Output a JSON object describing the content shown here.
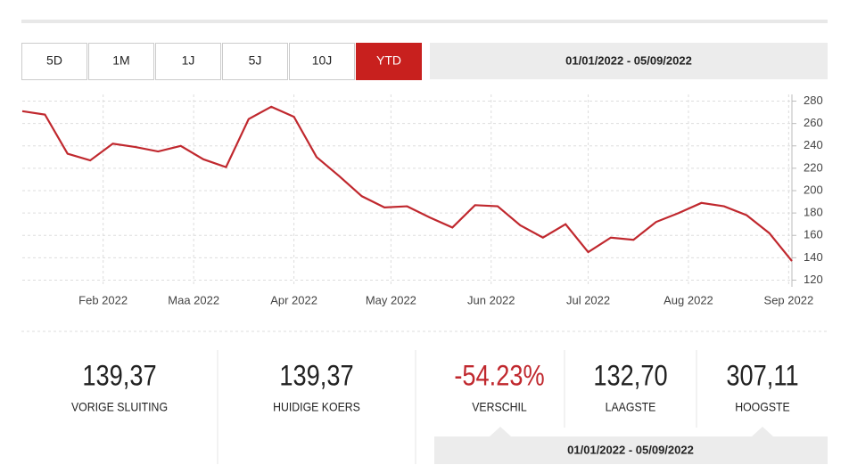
{
  "tabs": [
    "5D",
    "1M",
    "1J",
    "5J",
    "10J",
    "YTD"
  ],
  "active_tab": 5,
  "date_range": "01/01/2022 - 05/09/2022",
  "chart_data": {
    "type": "line",
    "x": [
      6,
      13,
      20,
      27,
      34,
      41,
      48,
      55,
      62,
      69,
      76,
      83,
      90,
      97,
      104,
      111,
      118,
      125,
      132,
      139,
      146,
      153,
      160,
      167,
      174,
      181,
      188,
      195,
      202,
      209,
      216,
      223,
      230,
      237,
      244
    ],
    "series": [
      {
        "color": "#c0282e",
        "values": [
          271,
          268,
          233,
          227,
          242,
          239,
          235,
          240,
          228,
          221,
          264,
          275,
          266,
          230,
          213,
          195,
          185,
          186,
          176,
          167,
          187,
          186,
          169,
          158,
          170,
          145,
          158,
          156,
          172,
          180,
          189,
          186,
          178,
          162,
          137
        ]
      }
    ],
    "xlim": [
      6,
      244
    ],
    "xticks": [
      {
        "value": 31,
        "label": "Feb 2022"
      },
      {
        "value": 59,
        "label": "Maa 2022"
      },
      {
        "value": 90,
        "label": "Apr 2022"
      },
      {
        "value": 120,
        "label": "May 2022"
      },
      {
        "value": 151,
        "label": "Jun 2022"
      },
      {
        "value": 181,
        "label": "Jul 2022"
      },
      {
        "value": 212,
        "label": "Aug 2022"
      },
      {
        "value": 243,
        "label": "Sep 2022"
      }
    ],
    "ylim": [
      114,
      286
    ],
    "yticks": [
      120,
      140,
      160,
      180,
      200,
      220,
      240,
      260,
      280
    ],
    "grid": true
  },
  "stats": [
    {
      "value": "139,37",
      "label": "VORIGE SLUITING"
    },
    {
      "value": "139,37",
      "label": "HUIDIGE KOERS"
    },
    {
      "value": "-54.23%",
      "label": "VERSCHIL",
      "color": "#c0282e"
    },
    {
      "value": "132,70",
      "label": "LAAGSTE"
    },
    {
      "value": "307,11",
      "label": "HOOGSTE"
    }
  ],
  "summary_range": "01/01/2022 - 05/09/2022"
}
